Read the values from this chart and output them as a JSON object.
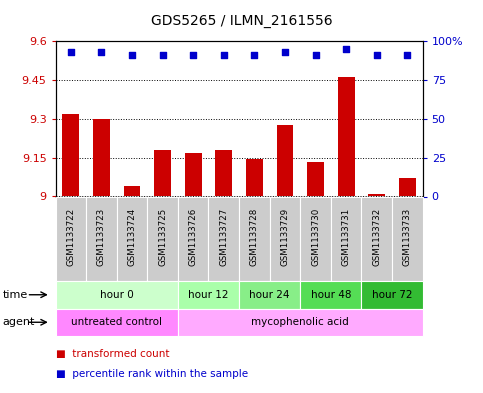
{
  "title": "GDS5265 / ILMN_2161556",
  "samples": [
    "GSM1133722",
    "GSM1133723",
    "GSM1133724",
    "GSM1133725",
    "GSM1133726",
    "GSM1133727",
    "GSM1133728",
    "GSM1133729",
    "GSM1133730",
    "GSM1133731",
    "GSM1133732",
    "GSM1133733"
  ],
  "bar_values": [
    9.32,
    9.3,
    9.04,
    9.18,
    9.17,
    9.18,
    9.145,
    9.275,
    9.135,
    9.46,
    9.01,
    9.07
  ],
  "percentile_values": [
    93,
    93,
    91,
    91,
    91,
    91,
    91,
    93,
    91,
    95,
    91,
    91
  ],
  "bar_color": "#cc0000",
  "percentile_color": "#0000cc",
  "ylim_left": [
    9.0,
    9.6
  ],
  "ylim_right": [
    0,
    100
  ],
  "yticks_left": [
    9.0,
    9.15,
    9.3,
    9.45,
    9.6
  ],
  "yticks_right": [
    0,
    25,
    50,
    75,
    100
  ],
  "ytick_labels_left": [
    "9",
    "9.15",
    "9.3",
    "9.45",
    "9.6"
  ],
  "ytick_labels_right": [
    "0",
    "25",
    "50",
    "75",
    "100%"
  ],
  "time_groups": [
    {
      "label": "hour 0",
      "start": 0,
      "end": 4,
      "color": "#ccffcc"
    },
    {
      "label": "hour 12",
      "start": 4,
      "end": 6,
      "color": "#aaffaa"
    },
    {
      "label": "hour 24",
      "start": 6,
      "end": 8,
      "color": "#88ee88"
    },
    {
      "label": "hour 48",
      "start": 8,
      "end": 10,
      "color": "#55dd55"
    },
    {
      "label": "hour 72",
      "start": 10,
      "end": 12,
      "color": "#33bb33"
    }
  ],
  "agent_untreated_label": "untreated control",
  "agent_untreated_color": "#ff88ff",
  "agent_treated_label": "mycophenolic acid",
  "agent_treated_color": "#ffaaff",
  "time_label": "time",
  "agent_label": "agent",
  "legend_bar_label": "transformed count",
  "legend_pct_label": "percentile rank within the sample",
  "bar_width": 0.55,
  "sample_bg_color": "#cccccc",
  "plot_bg": "#ffffff"
}
